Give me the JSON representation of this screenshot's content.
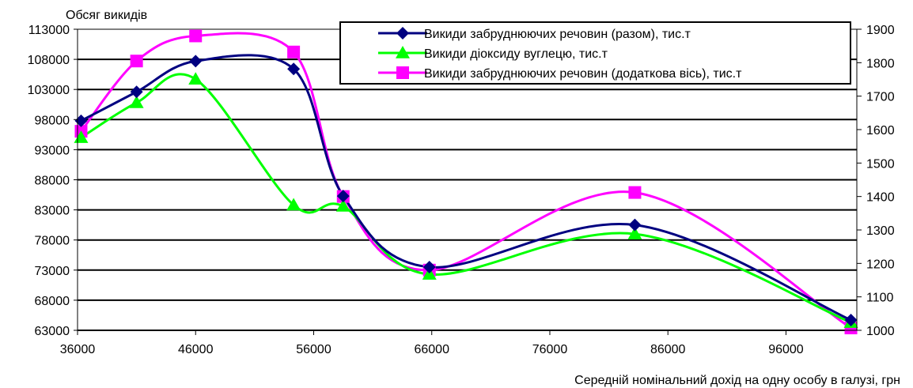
{
  "chart_data": {
    "type": "line",
    "ylabel": "Обсяг викидів",
    "xlabel": "Середній номінальний дохід на одну особу в галузі, грн",
    "xlim": [
      36000,
      102000
    ],
    "xticks": [
      36000,
      46000,
      56000,
      66000,
      76000,
      86000,
      96000
    ],
    "ylim": [
      63000,
      113000
    ],
    "yticks": [
      63000,
      68000,
      73000,
      78000,
      83000,
      88000,
      93000,
      98000,
      103000,
      108000,
      113000
    ],
    "y2lim": [
      1000,
      1900
    ],
    "y2ticks": [
      1000,
      1100,
      1200,
      1300,
      1400,
      1500,
      1600,
      1700,
      1800,
      1900
    ],
    "grid": true,
    "legend_position": "top-right",
    "series": [
      {
        "name": "Викиди забруднюючих речовин (разом), тис.т",
        "axis": "left",
        "color": "#000080",
        "marker": "diamond",
        "x": [
          36300,
          41000,
          46000,
          54300,
          58500,
          65800,
          83200,
          101500
        ],
        "y": [
          97800,
          102600,
          107700,
          106400,
          85300,
          73500,
          80500,
          64700
        ]
      },
      {
        "name": "Викиди діоксиду вуглецю, тис.т",
        "axis": "left",
        "color": "#00ff00",
        "marker": "triangle",
        "x": [
          36300,
          41000,
          46000,
          54300,
          58500,
          65800,
          83200,
          101500
        ],
        "y": [
          95000,
          100800,
          104700,
          83800,
          83600,
          72300,
          79000,
          64300
        ]
      },
      {
        "name": "Викиди забруднюючих речовин (додаткова вісь), тис.т",
        "axis": "right",
        "color": "#ff00ff",
        "marker": "square",
        "x": [
          36300,
          41000,
          46000,
          54300,
          58500,
          65800,
          83200,
          101500
        ],
        "y": [
          1595,
          1805,
          1880,
          1832,
          1400,
          1180,
          1412,
          1007
        ]
      }
    ]
  }
}
